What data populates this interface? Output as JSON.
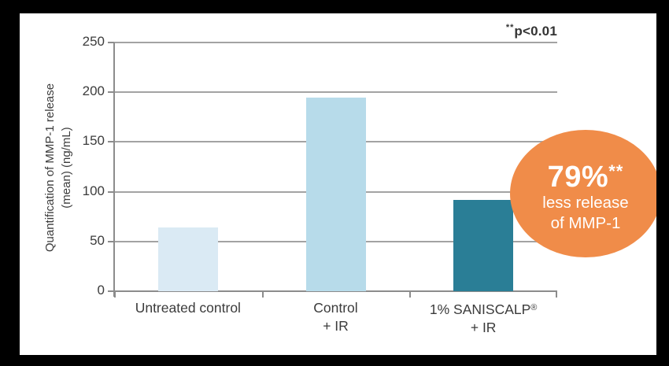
{
  "frame": {
    "background": "#000000",
    "canvas_background": "#FFFFFF"
  },
  "significance_note": {
    "stars": "**",
    "text": "p<0.01"
  },
  "y_axis_title": {
    "line1": "Quantification of MMP-1 release",
    "line2": "(mean) (ng/mL)"
  },
  "badge": {
    "percent": "79%",
    "stars": "**",
    "line1": "less release",
    "line2": "of MMP-1",
    "color": "#F08C49",
    "text_color": "#FFFFFF"
  },
  "chart_data": {
    "type": "bar",
    "title": "",
    "ylabel": "Quantification of MMP-1 release (mean) (ng/mL)",
    "xlabel": "",
    "categories": [
      [
        "Untreated control"
      ],
      [
        "Control",
        "+ IR"
      ],
      [
        "1% SANISCALP®",
        "+ IR"
      ]
    ],
    "values": [
      64,
      195,
      92
    ],
    "bar_colors": [
      "#DAEAF4",
      "#B7DBEA",
      "#2A7E96"
    ],
    "ylim": [
      0,
      250
    ],
    "yticks": [
      0,
      50,
      100,
      150,
      200,
      250
    ],
    "grid": true,
    "gridline_color": "#A3A3A3",
    "axis_color": "#8C8C8C",
    "legend_position": "none",
    "annotation": "**p<0.01"
  }
}
